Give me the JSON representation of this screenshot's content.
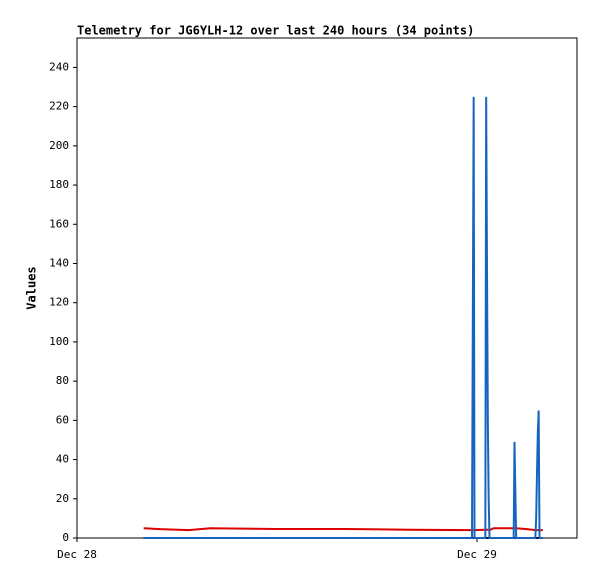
{
  "chart_data": {
    "type": "line",
    "title": "Telemetry for JG6YLH-12 over last 240 hours (34 points)",
    "y_label": "Values",
    "x": [
      4.0,
      5.0,
      6.7,
      8.0,
      12.0,
      16.0,
      20.0,
      23.7,
      23.75,
      23.8,
      23.85,
      24.5,
      24.55,
      24.6,
      24.65,
      24.7,
      24.75,
      24.8,
      25.0,
      26.2,
      26.25,
      26.3,
      26.35,
      27.0,
      27.5,
      27.55,
      27.6,
      27.65,
      27.7,
      27.75,
      27.8,
      27.85,
      27.9,
      27.95
    ],
    "series": [
      {
        "color": "#dd0000",
        "values": [
          5,
          4.5,
          4,
          5,
          4.6,
          4.6,
          4.2,
          4,
          4,
          4,
          4,
          4.2,
          4.2,
          4.2,
          4.2,
          4.2,
          4.2,
          4.2,
          5,
          5,
          5,
          5,
          5,
          4.5,
          4,
          4,
          4,
          4,
          4,
          4,
          4,
          4,
          4,
          4
        ]
      },
      {
        "color": "#000000",
        "values": [
          0,
          0,
          0,
          0,
          0,
          0,
          0,
          0,
          0,
          0,
          0,
          0,
          0,
          0,
          0,
          0,
          0,
          0,
          0,
          0,
          0,
          0,
          0,
          0,
          0,
          0,
          0,
          0,
          0,
          0,
          0,
          0,
          0,
          0
        ]
      },
      {
        "color": "#1565c0",
        "values": [
          0,
          0,
          0,
          0,
          0,
          0,
          0,
          0,
          113,
          225,
          0,
          0,
          225,
          137,
          60,
          20,
          0,
          0,
          0,
          0,
          49,
          24,
          0,
          0,
          0,
          10,
          33,
          54,
          65,
          0,
          0,
          0,
          0,
          0
        ]
      }
    ],
    "xlim": [
      0,
      30
    ],
    "xticks": [
      {
        "value": 0,
        "label": "Dec 28"
      },
      {
        "value": 24,
        "label": "Dec 29"
      }
    ],
    "ylim": [
      0,
      255
    ],
    "yticks": [
      0,
      20,
      40,
      60,
      80,
      100,
      120,
      140,
      160,
      180,
      200,
      220,
      240
    ]
  }
}
